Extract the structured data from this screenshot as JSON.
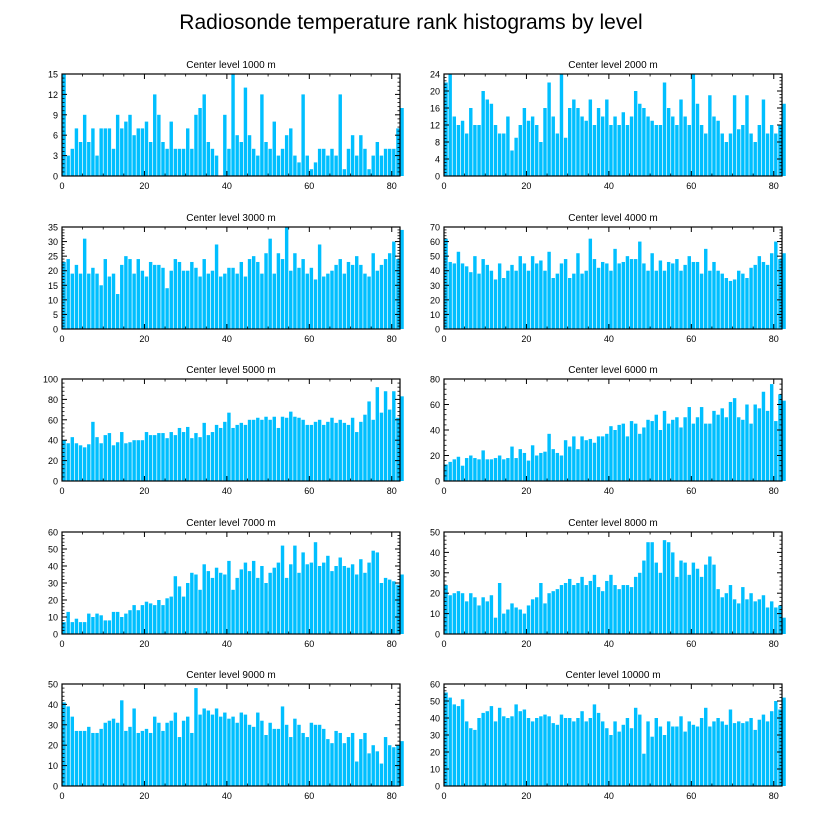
{
  "title": "Radiosonde temperature rank histograms by level",
  "bar_color": "#00bfff",
  "chart_data": [
    {
      "type": "bar",
      "title": "Center level 1000 m",
      "xlim": [
        0,
        82
      ],
      "ylim": [
        0,
        15
      ],
      "xticks": [
        0,
        20,
        40,
        60,
        80
      ],
      "yticks": [
        0,
        3,
        6,
        9,
        12,
        15
      ],
      "values": [
        15,
        3,
        4,
        7,
        5,
        9,
        5,
        7,
        3,
        7,
        7,
        7,
        4,
        9,
        7,
        8,
        9,
        6,
        7,
        7,
        8,
        5,
        12,
        9,
        5,
        4,
        8,
        4,
        4,
        4,
        7,
        4,
        9,
        10,
        12,
        5,
        4,
        3,
        0,
        9,
        4,
        15,
        6,
        5,
        13,
        6,
        4,
        3,
        12,
        5,
        4,
        8,
        3,
        4,
        6,
        7,
        3,
        2,
        12,
        3,
        1,
        2,
        4,
        4,
        3,
        4,
        3,
        12,
        1,
        4,
        6,
        3,
        6,
        4,
        1,
        3,
        5,
        3,
        4,
        4,
        4,
        7,
        10
      ]
    },
    {
      "type": "bar",
      "title": "Center level 2000 m",
      "xlim": [
        0,
        82
      ],
      "ylim": [
        0,
        24
      ],
      "xticks": [
        0,
        20,
        40,
        60,
        80
      ],
      "yticks": [
        0,
        4,
        8,
        12,
        16,
        20,
        24
      ],
      "values": [
        22,
        24,
        14,
        12,
        13,
        10,
        16,
        12,
        12,
        20,
        18,
        17,
        12,
        10,
        10,
        14,
        6,
        9,
        12,
        16,
        13,
        14,
        12,
        8,
        16,
        22,
        14,
        10,
        24,
        9,
        16,
        18,
        16,
        14,
        13,
        18,
        12,
        16,
        14,
        18,
        12,
        14,
        12,
        15,
        12,
        14,
        20,
        17,
        16,
        14,
        13,
        12,
        12,
        22,
        16,
        14,
        12,
        18,
        14,
        12,
        24,
        17,
        12,
        10,
        19,
        14,
        13,
        10,
        8,
        10,
        19,
        11,
        12,
        19,
        10,
        8,
        12,
        18,
        10,
        12,
        10,
        12,
        17
      ]
    },
    {
      "type": "bar",
      "title": "Center level 3000 m",
      "xlim": [
        0,
        82
      ],
      "ylim": [
        0,
        35
      ],
      "xticks": [
        0,
        20,
        40,
        60,
        80
      ],
      "yticks": [
        0,
        5,
        10,
        15,
        20,
        25,
        30,
        35
      ],
      "values": [
        23,
        24,
        19,
        22,
        19,
        31,
        19,
        21,
        19,
        15,
        24,
        18,
        19,
        12,
        22,
        25,
        24,
        19,
        24,
        20,
        18,
        23,
        22,
        22,
        21,
        14,
        20,
        24,
        23,
        20,
        20,
        23,
        21,
        18,
        24,
        19,
        20,
        29,
        18,
        19,
        21,
        21,
        19,
        23,
        18,
        24,
        25,
        23,
        19,
        26,
        31,
        19,
        26,
        24,
        35,
        20,
        26,
        21,
        24,
        19,
        21,
        17,
        29,
        18,
        19,
        20,
        22,
        24,
        19,
        23,
        22,
        25,
        22,
        19,
        18,
        26,
        20,
        22,
        24,
        26,
        30,
        24,
        34
      ]
    },
    {
      "type": "bar",
      "title": "Center level 4000 m",
      "xlim": [
        0,
        82
      ],
      "ylim": [
        0,
        70
      ],
      "xticks": [
        0,
        20,
        40,
        60,
        80
      ],
      "yticks": [
        0,
        10,
        20,
        30,
        40,
        50,
        60,
        70
      ],
      "values": [
        62,
        46,
        45,
        53,
        45,
        43,
        39,
        50,
        38,
        48,
        44,
        40,
        34,
        45,
        35,
        40,
        44,
        40,
        50,
        45,
        40,
        50,
        45,
        47,
        40,
        53,
        35,
        38,
        45,
        48,
        35,
        38,
        52,
        38,
        40,
        62,
        48,
        42,
        46,
        45,
        40,
        55,
        45,
        46,
        50,
        48,
        48,
        60,
        45,
        40,
        52,
        40,
        47,
        40,
        46,
        45,
        48,
        40,
        44,
        50,
        46,
        46,
        38,
        55,
        40,
        46,
        40,
        38,
        35,
        33,
        34,
        40,
        38,
        35,
        42,
        44,
        50,
        46,
        44,
        52,
        60,
        48,
        52
      ]
    },
    {
      "type": "bar",
      "title": "Center level 5000 m",
      "xlim": [
        0,
        82
      ],
      "ylim": [
        0,
        100
      ],
      "xticks": [
        0,
        20,
        40,
        60,
        80
      ],
      "yticks": [
        0,
        20,
        40,
        60,
        80,
        100
      ],
      "values": [
        40,
        37,
        43,
        37,
        35,
        33,
        36,
        58,
        43,
        37,
        45,
        47,
        35,
        38,
        48,
        37,
        38,
        40,
        40,
        40,
        48,
        45,
        45,
        47,
        47,
        42,
        48,
        45,
        52,
        48,
        53,
        42,
        47,
        43,
        57,
        45,
        48,
        55,
        52,
        58,
        67,
        52,
        55,
        57,
        55,
        60,
        60,
        62,
        60,
        63,
        60,
        63,
        52,
        63,
        62,
        68,
        63,
        62,
        60,
        55,
        55,
        58,
        60,
        55,
        58,
        62,
        57,
        60,
        57,
        55,
        62,
        48,
        58,
        65,
        78,
        60,
        92,
        67,
        88,
        70,
        88,
        62,
        83
      ]
    },
    {
      "type": "bar",
      "title": "Center level 6000 m",
      "xlim": [
        0,
        82
      ],
      "ylim": [
        0,
        80
      ],
      "xticks": [
        0,
        20,
        40,
        60,
        80
      ],
      "yticks": [
        0,
        20,
        40,
        60,
        80
      ],
      "values": [
        13,
        15,
        17,
        19,
        12,
        18,
        20,
        18,
        17,
        24,
        17,
        17,
        18,
        20,
        17,
        18,
        27,
        18,
        25,
        22,
        16,
        28,
        20,
        22,
        23,
        37,
        25,
        22,
        20,
        32,
        27,
        35,
        25,
        35,
        32,
        33,
        30,
        35,
        35,
        37,
        43,
        40,
        44,
        45,
        35,
        47,
        45,
        37,
        42,
        48,
        47,
        52,
        40,
        55,
        45,
        48,
        50,
        42,
        50,
        58,
        45,
        50,
        58,
        45,
        45,
        55,
        52,
        57,
        50,
        62,
        65,
        50,
        48,
        60,
        45,
        60,
        57,
        70,
        55,
        76,
        47,
        68,
        63
      ]
    },
    {
      "type": "bar",
      "title": "Center level 7000 m",
      "xlim": [
        0,
        82
      ],
      "ylim": [
        0,
        60
      ],
      "xticks": [
        0,
        20,
        40,
        60,
        80
      ],
      "yticks": [
        0,
        10,
        20,
        30,
        40,
        50,
        60
      ],
      "values": [
        7,
        13,
        7,
        9,
        7,
        7,
        12,
        10,
        12,
        11,
        8,
        8,
        13,
        13,
        10,
        12,
        14,
        17,
        14,
        17,
        19,
        18,
        17,
        20,
        17,
        21,
        22,
        34,
        28,
        22,
        30,
        36,
        35,
        26,
        41,
        37,
        33,
        39,
        36,
        35,
        43,
        26,
        33,
        38,
        42,
        37,
        43,
        33,
        40,
        30,
        36,
        39,
        42,
        52,
        33,
        41,
        52,
        36,
        48,
        41,
        42,
        54,
        40,
        42,
        46,
        37,
        40,
        45,
        40,
        39,
        41,
        35,
        44,
        36,
        42,
        49,
        48,
        30,
        33,
        32,
        31,
        29,
        35
      ]
    },
    {
      "type": "bar",
      "title": "Center level 8000 m",
      "xlim": [
        0,
        82
      ],
      "ylim": [
        0,
        50
      ],
      "xticks": [
        0,
        20,
        40,
        60,
        80
      ],
      "yticks": [
        0,
        10,
        20,
        30,
        40,
        50
      ],
      "values": [
        24,
        19,
        20,
        21,
        20,
        16,
        20,
        18,
        14,
        18,
        16,
        19,
        8,
        25,
        10,
        12,
        15,
        13,
        12,
        10,
        14,
        17,
        18,
        25,
        15,
        20,
        21,
        22,
        24,
        25,
        27,
        24,
        25,
        28,
        24,
        26,
        29,
        23,
        21,
        26,
        29,
        24,
        22,
        24,
        24,
        23,
        28,
        30,
        36,
        45,
        45,
        35,
        30,
        46,
        45,
        40,
        28,
        36,
        35,
        29,
        35,
        32,
        28,
        34,
        38,
        34,
        22,
        18,
        20,
        24,
        17,
        15,
        23,
        17,
        20,
        16,
        17,
        19,
        13,
        16,
        13,
        14,
        8
      ]
    },
    {
      "type": "bar",
      "title": "Center level 9000 m",
      "xlim": [
        0,
        82
      ],
      "ylim": [
        0,
        50
      ],
      "xticks": [
        0,
        20,
        40,
        60,
        80
      ],
      "yticks": [
        0,
        10,
        20,
        30,
        40,
        50
      ],
      "values": [
        41,
        39,
        34,
        27,
        27,
        27,
        29,
        26,
        26,
        28,
        31,
        32,
        33,
        31,
        42,
        27,
        29,
        38,
        26,
        27,
        28,
        26,
        34,
        31,
        27,
        31,
        32,
        36,
        24,
        32,
        34,
        26,
        48,
        35,
        38,
        37,
        35,
        38,
        34,
        36,
        33,
        34,
        31,
        36,
        35,
        30,
        29,
        36,
        32,
        25,
        31,
        28,
        28,
        39,
        30,
        24,
        33,
        30,
        26,
        24,
        31,
        30,
        30,
        28,
        23,
        21,
        27,
        26,
        21,
        24,
        26,
        12,
        23,
        26,
        16,
        20,
        17,
        11,
        24,
        20,
        19,
        20,
        22
      ]
    },
    {
      "type": "bar",
      "title": "Center level 10000 m",
      "xlim": [
        0,
        82
      ],
      "ylim": [
        0,
        60
      ],
      "xticks": [
        0,
        20,
        40,
        60,
        80
      ],
      "yticks": [
        0,
        10,
        20,
        30,
        40,
        50,
        60
      ],
      "values": [
        55,
        52,
        48,
        47,
        51,
        38,
        34,
        33,
        40,
        43,
        44,
        47,
        38,
        46,
        41,
        40,
        41,
        48,
        44,
        45,
        40,
        38,
        40,
        41,
        42,
        41,
        37,
        36,
        42,
        40,
        40,
        38,
        40,
        44,
        38,
        40,
        48,
        43,
        38,
        34,
        30,
        38,
        32,
        36,
        40,
        34,
        46,
        42,
        19,
        38,
        29,
        40,
        35,
        30,
        38,
        35,
        35,
        41,
        32,
        38,
        36,
        35,
        40,
        46,
        35,
        38,
        40,
        38,
        36,
        45,
        37,
        38,
        37,
        38,
        40,
        33,
        39,
        42,
        38,
        44,
        50,
        45,
        52
      ]
    }
  ]
}
